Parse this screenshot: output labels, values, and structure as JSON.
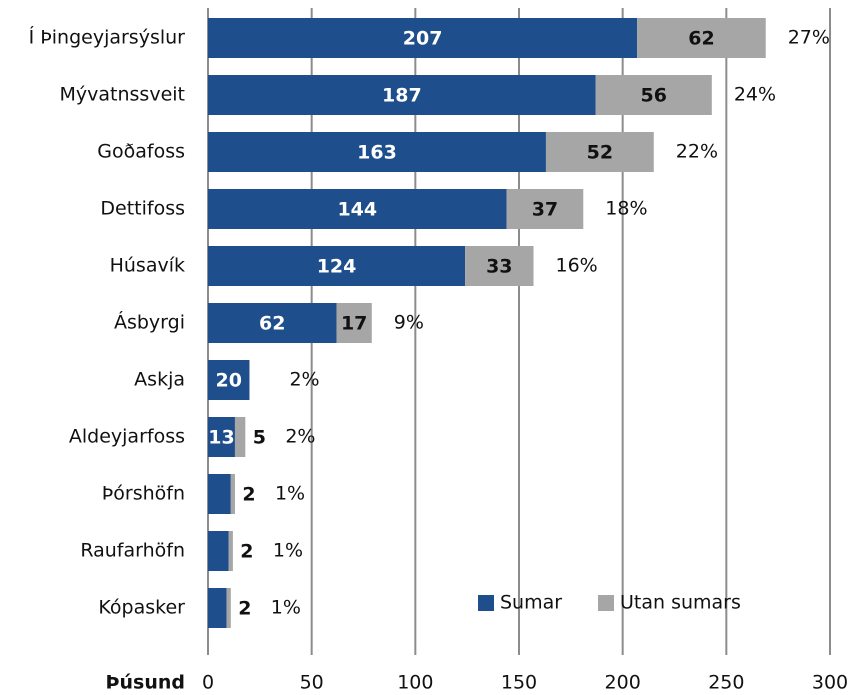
{
  "chart_data": {
    "type": "stacked_barh",
    "categories": [
      "Í Þingeyjarsýslur",
      "Mývatnssveit",
      "Goðafoss",
      "Dettifoss",
      "Húsavík",
      "Ásbyrgi",
      "Askja",
      "Aldeyjarfoss",
      "Þórshöfn",
      "Raufarhöfn",
      "Kópasker"
    ],
    "series": [
      {
        "name": "Sumar",
        "color": "#1f4e8c",
        "values": [
          207,
          187,
          163,
          144,
          124,
          62,
          20,
          13,
          11,
          10,
          9
        ]
      },
      {
        "name": "Utan sumars",
        "color": "#a6a6a6",
        "values": [
          62,
          56,
          52,
          37,
          33,
          17,
          null,
          5,
          2,
          2,
          2
        ]
      }
    ],
    "shares": [
      "27%",
      "24%",
      "22%",
      "18%",
      "16%",
      "9%",
      "2%",
      "2%",
      "1%",
      "1%",
      "1%"
    ],
    "xlabel": "Þúsund",
    "xlim": [
      0,
      300
    ],
    "xticks": [
      0,
      50,
      100,
      150,
      200,
      250,
      300
    ],
    "grid": true,
    "legend": "lower right"
  }
}
